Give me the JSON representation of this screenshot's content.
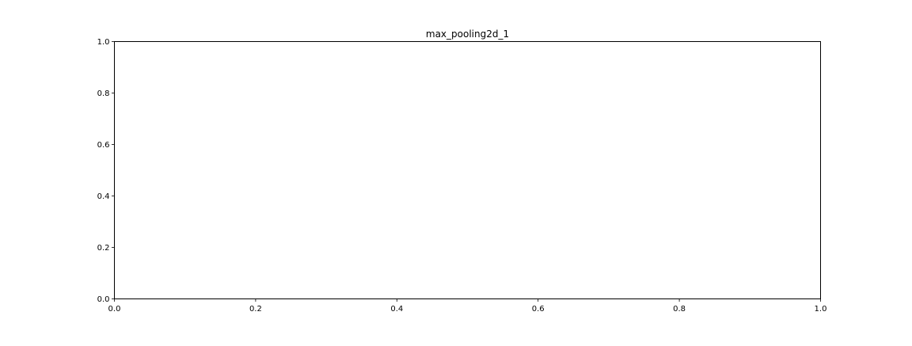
{
  "chart_data": {
    "type": "line",
    "title": "max_pooling2d_1",
    "xlabel": "",
    "ylabel": "",
    "xlim": [
      0.0,
      1.0
    ],
    "ylim": [
      0.0,
      1.0
    ],
    "x_ticks": [
      0.0,
      0.2,
      0.4,
      0.6,
      0.8,
      1.0
    ],
    "y_ticks": [
      0.0,
      0.2,
      0.4,
      0.6,
      0.8,
      1.0
    ],
    "x_tick_labels": [
      "0.0",
      "0.2",
      "0.4",
      "0.6",
      "0.8",
      "1.0"
    ],
    "y_tick_labels": [
      "0.0",
      "0.2",
      "0.4",
      "0.6",
      "0.8",
      "1.0"
    ],
    "grid": false,
    "series": []
  }
}
